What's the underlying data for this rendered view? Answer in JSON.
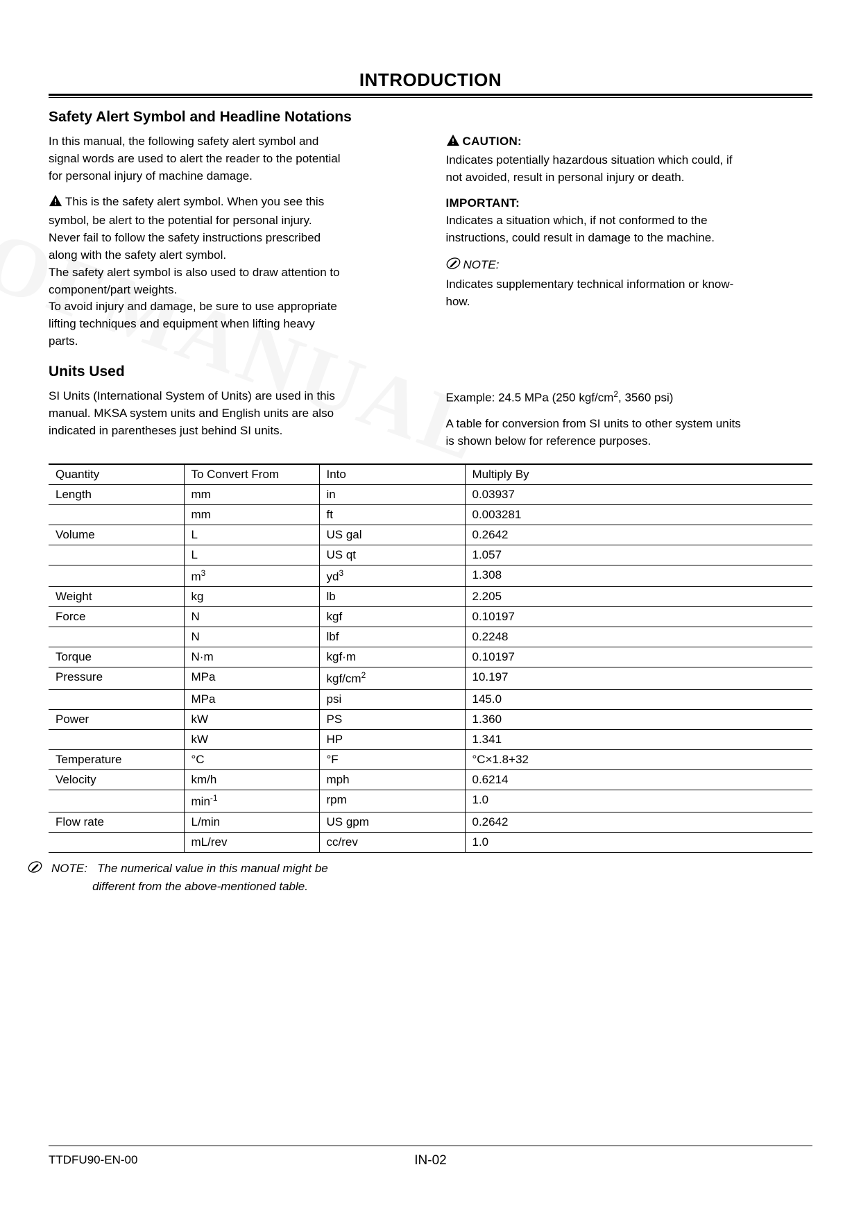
{
  "page_title": "INTRODUCTION",
  "section1": {
    "heading": "Safety Alert Symbol and Headline Notations",
    "left": {
      "p1a": "In this manual, the following safety alert symbol and",
      "p1b": "signal words are used to alert the reader to the potential",
      "p1c": "for personal injury of machine damage.",
      "p2a": "This is the safety alert symbol. When you see this",
      "p2b": "symbol, be alert to the potential for personal injury.",
      "p2c": "Never fail to follow the safety instructions prescribed",
      "p2d": "along with the safety alert symbol.",
      "p3a": "The safety alert symbol is also used to draw attention to",
      "p3b": "component/part weights.",
      "p4a": "To avoid injury and damage, be sure to use appropriate",
      "p4b": "lifting techniques and equipment when lifting heavy",
      "p4c": "parts."
    },
    "right": {
      "caution_label": "CAUTION:",
      "caution_1": "Indicates potentially hazardous situation which could, if",
      "caution_2": "not avoided, result in personal injury or death.",
      "important_label": "IMPORTANT:",
      "important_1": "Indicates a situation which, if not conformed to the",
      "important_2": "instructions, could result in damage to the machine.",
      "note_label": "NOTE:",
      "note_1": "Indicates supplementary technical information or know-",
      "note_2": "how."
    }
  },
  "section2": {
    "heading": "Units Used",
    "left": {
      "p1a": "SI Units (International System of Units) are used in this",
      "p1b": "manual. MKSA system units and English units are also",
      "p1c": "indicated in parentheses just behind SI units."
    },
    "right": {
      "ex_pref": "Example: 24.5 MPa (250 kgf/cm",
      "ex_suf": ", 3560 psi)",
      "p2a": "A table for conversion from SI units to other system units",
      "p2b": "is shown below for reference purposes."
    }
  },
  "table": {
    "head": {
      "q": "Quantity",
      "f": "To Convert From",
      "i": "Into",
      "m": "Multiply By"
    },
    "rows": [
      {
        "q": "Length",
        "f": "mm",
        "i": "in",
        "m": "0.03937"
      },
      {
        "q": "",
        "f": "mm",
        "i": "ft",
        "m": "0.003281"
      },
      {
        "q": "Volume",
        "f": "L",
        "i": "US gal",
        "m": "0.2642"
      },
      {
        "q": "",
        "f": "L",
        "i": "US qt",
        "m": "1.057"
      },
      {
        "q": "",
        "f": "m³",
        "i": "yd³",
        "m": "1.308",
        "f_html": "m<sup>3</sup>",
        "i_html": "yd<sup>3</sup>"
      },
      {
        "q": "Weight",
        "f": "kg",
        "i": "lb",
        "m": "2.205"
      },
      {
        "q": "Force",
        "f": "N",
        "i": "kgf",
        "m": "0.10197"
      },
      {
        "q": "",
        "f": "N",
        "i": "lbf",
        "m": "0.2248"
      },
      {
        "q": "Torque",
        "f": "N·m",
        "i": "kgf·m",
        "m": "0.10197"
      },
      {
        "q": "Pressure",
        "f": "MPa",
        "i": "kgf/cm²",
        "m": "10.197",
        "i_html": "kgf/cm<sup>2</sup>"
      },
      {
        "q": "",
        "f": "MPa",
        "i": "psi",
        "m": "145.0"
      },
      {
        "q": "Power",
        "f": "kW",
        "i": "PS",
        "m": "1.360"
      },
      {
        "q": "",
        "f": "kW",
        "i": "HP",
        "m": "1.341"
      },
      {
        "q": "Temperature",
        "f": "°C",
        "i": "°F",
        "m": "°C×1.8+32"
      },
      {
        "q": "Velocity",
        "f": "km/h",
        "i": "mph",
        "m": "0.6214"
      },
      {
        "q": "",
        "f": "min⁻¹",
        "i": "rpm",
        "m": "1.0",
        "f_html": "min<sup>-1</sup>"
      },
      {
        "q": "Flow rate",
        "f": "L/min",
        "i": "US gpm",
        "m": "0.2642"
      },
      {
        "q": "",
        "f": "mL/rev",
        "i": "cc/rev",
        "m": "1.0"
      }
    ]
  },
  "table_note": {
    "lead": "NOTE:",
    "t1": "The numerical value in this manual might be",
    "t2": "different from the above-mentioned table."
  },
  "footer": {
    "left": "TTDFU90-EN-00",
    "center": "IN-02"
  },
  "watermark": "OFMANUAL"
}
